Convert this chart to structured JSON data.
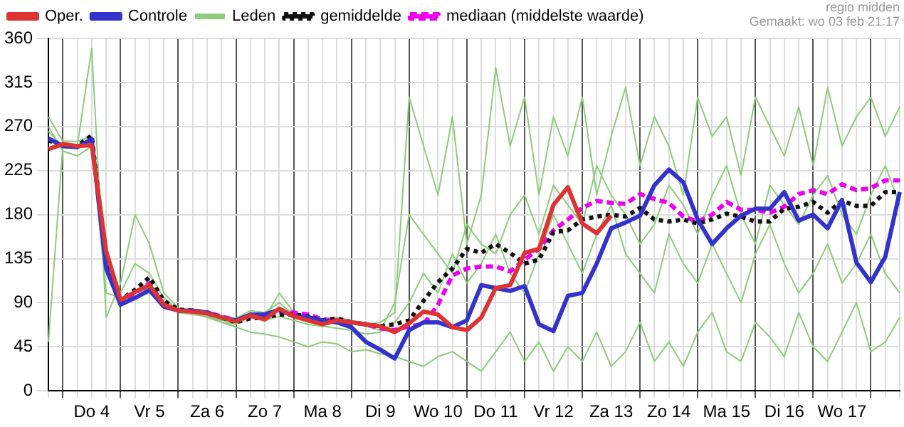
{
  "chart_data": {
    "type": "line",
    "annotations": [
      "regio midden",
      "Gemaakt: wo 03 feb 21:17"
    ],
    "categories": [
      null,
      null,
      null,
      "Do 4",
      null,
      null,
      null,
      "Vr 5",
      null,
      null,
      null,
      "Za 6",
      null,
      null,
      null,
      "Zo 7",
      null,
      null,
      null,
      "Ma 8",
      null,
      null,
      null,
      "Di 9",
      null,
      null,
      null,
      "Wo 10",
      null,
      null,
      null,
      "Do 11",
      null,
      null,
      null,
      "Vr 12",
      null,
      null,
      null,
      "Za 13",
      null,
      null,
      null,
      "Zo 14",
      null,
      null,
      null,
      "Ma 15",
      null,
      null,
      null,
      "Di 16",
      null,
      null,
      null,
      "Wo 17",
      null,
      null,
      null,
      null
    ],
    "ylim": [
      0,
      360
    ],
    "yticks": [
      0,
      45,
      90,
      135,
      180,
      225,
      270,
      315,
      360
    ],
    "grid": true,
    "legend": "top",
    "marker": "none",
    "series": [
      {
        "name": "Oper.",
        "color": "#dd3333",
        "line_style": "solid",
        "values": [
          247,
          252,
          250,
          251,
          143,
          93,
          101,
          108,
          88,
          82,
          81,
          79,
          75,
          71,
          77,
          73,
          84,
          76,
          72,
          68,
          72,
          70,
          68,
          66,
          60,
          69,
          81,
          78,
          65,
          62,
          75,
          105,
          108,
          141,
          145,
          190,
          208,
          171,
          161,
          179,
          null,
          null,
          null,
          null,
          null,
          null,
          null,
          null,
          null,
          null,
          null,
          null,
          null,
          null,
          null,
          null,
          null,
          null,
          null,
          null
        ]
      },
      {
        "name": "Controle",
        "color": "#3333cc",
        "line_style": "solid",
        "values": [
          258,
          250,
          249,
          257,
          125,
          88,
          95,
          103,
          86,
          82,
          82,
          80,
          75,
          72,
          78,
          78,
          83,
          76,
          75,
          72,
          70,
          65,
          50,
          42,
          33,
          62,
          70,
          70,
          65,
          72,
          108,
          105,
          102,
          107,
          68,
          61,
          97,
          100,
          130,
          166,
          172,
          179,
          210,
          226,
          213,
          175,
          150,
          166,
          179,
          186,
          186,
          203,
          174,
          180,
          166,
          195,
          131,
          111,
          137,
          203
        ]
      },
      {
        "name": "Leden",
        "color": "#8ccc7a",
        "line_style": "solid",
        "values": [
          50,
          250,
          250,
          350,
          75,
          110,
          180,
          150,
          100,
          85,
          80,
          78,
          70,
          68,
          80,
          75,
          100,
          80,
          70,
          70,
          75,
          72,
          68,
          70,
          80,
          300,
          250,
          200,
          280,
          150,
          200,
          330,
          250,
          300,
          200,
          280,
          240,
          300,
          200,
          260,
          310,
          230,
          280,
          250,
          200,
          300,
          260,
          280,
          220,
          300,
          270,
          240,
          290,
          230,
          310,
          250,
          280,
          300,
          260,
          290
        ]
      },
      {
        "color": "#8ccc7a",
        "line_style": "solid",
        "values": [
          270,
          245,
          240,
          250,
          100,
          95,
          95,
          100,
          90,
          85,
          80,
          75,
          70,
          65,
          60,
          58,
          55,
          50,
          45,
          50,
          48,
          40,
          42,
          38,
          35,
          30,
          25,
          35,
          40,
          30,
          20,
          40,
          60,
          30,
          50,
          20,
          45,
          30,
          60,
          25,
          40,
          70,
          30,
          50,
          25,
          60,
          80,
          40,
          30,
          70,
          55,
          35,
          80,
          45,
          30,
          60,
          90,
          40,
          50,
          75
        ]
      },
      {
        "color": "#8ccc7a",
        "line_style": "solid",
        "values": [
          280,
          255,
          255,
          260,
          140,
          100,
          130,
          120,
          95,
          82,
          82,
          80,
          76,
          74,
          82,
          80,
          90,
          78,
          74,
          70,
          72,
          70,
          66,
          62,
          90,
          180,
          160,
          140,
          120,
          170,
          150,
          140,
          180,
          200,
          160,
          210,
          190,
          170,
          230,
          200,
          180,
          150,
          170,
          210,
          190,
          160,
          200,
          230,
          180,
          150,
          210,
          190,
          170,
          200,
          220,
          180,
          160,
          200,
          230,
          190
        ]
      },
      {
        "color": "#8ccc7a",
        "line_style": "solid",
        "values": [
          265,
          250,
          248,
          258,
          120,
          90,
          100,
          105,
          88,
          80,
          78,
          76,
          72,
          70,
          75,
          72,
          76,
          72,
          68,
          66,
          64,
          62,
          58,
          60,
          70,
          90,
          120,
          100,
          140,
          110,
          130,
          160,
          120,
          100,
          140,
          180,
          150,
          120,
          160,
          190,
          140,
          120,
          100,
          160,
          130,
          110,
          150,
          120,
          90,
          140,
          170,
          130,
          100,
          120,
          150,
          110,
          130,
          160,
          120,
          100
        ]
      },
      {
        "name": "gemiddelde",
        "color": "#111111",
        "line_style": "dotted",
        "values": [
          256,
          250,
          250,
          261,
          130,
          93,
          103,
          116,
          92,
          83,
          82,
          80,
          75,
          70,
          74,
          75,
          78,
          78,
          76,
          72,
          74,
          70,
          68,
          66,
          68,
          72,
          92,
          111,
          125,
          145,
          141,
          150,
          141,
          130,
          134,
          162,
          164,
          175,
          178,
          180,
          178,
          187,
          175,
          173,
          175,
          171,
          175,
          181,
          178,
          173,
          173,
          186,
          188,
          193,
          182,
          194,
          189,
          189,
          203,
          203
        ]
      },
      {
        "name": "mediaan (middelste waarde)",
        "color": "#ee00ee",
        "line_style": "dashed",
        "values": [
          null,
          null,
          null,
          null,
          128,
          92,
          100,
          110,
          88,
          82,
          81,
          80,
          76,
          72,
          76,
          76,
          80,
          80,
          78,
          73,
          72,
          70,
          68,
          64,
          62,
          66,
          68,
          88,
          118,
          125,
          127,
          127,
          122,
          134,
          145,
          164,
          175,
          187,
          194,
          192,
          191,
          201,
          196,
          192,
          178,
          173,
          180,
          193,
          185,
          185,
          182,
          188,
          201,
          205,
          201,
          211,
          205,
          207,
          215,
          215
        ]
      }
    ]
  }
}
